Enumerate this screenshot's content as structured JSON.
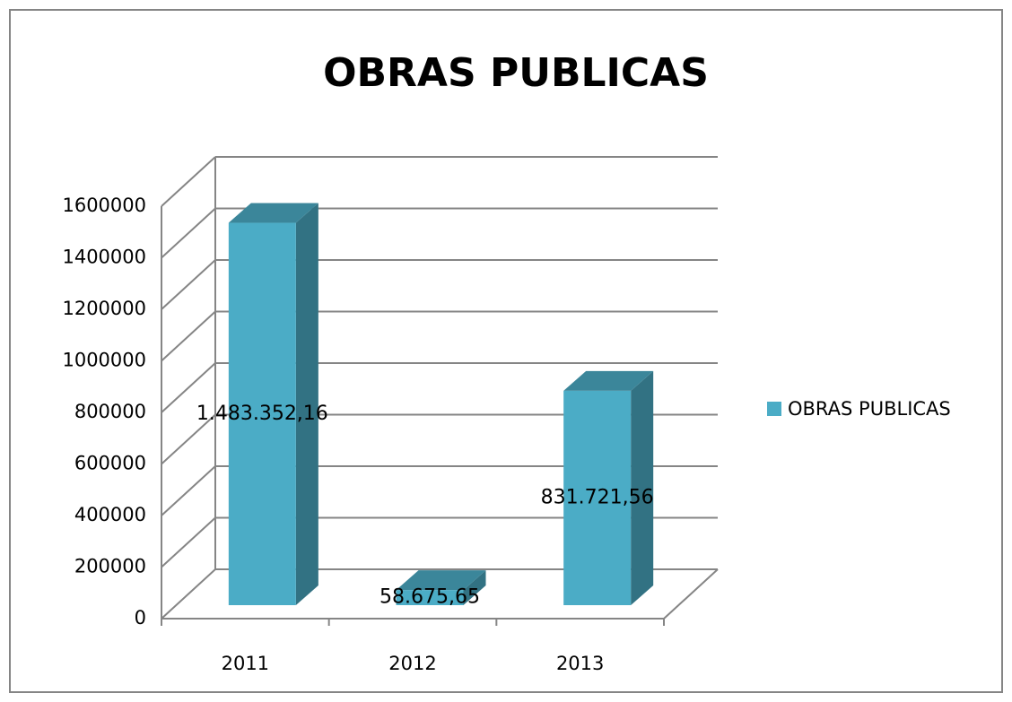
{
  "chart_data": {
    "type": "bar3d",
    "title": "OBRAS PUBLICAS",
    "categories": [
      "2011",
      "2012",
      "2013"
    ],
    "series": [
      {
        "name": "OBRAS PUBLICAS",
        "color": "#4bacc6",
        "values": [
          1483352.16,
          58675.65,
          831721.56
        ],
        "value_labels": [
          "1.483.352,16",
          "58.675,65",
          "831.721,56"
        ]
      }
    ],
    "ylim": [
      0,
      1600000
    ],
    "yticks": [
      0,
      200000,
      400000,
      600000,
      800000,
      1000000,
      1200000,
      1400000,
      1600000
    ],
    "grid": true,
    "legend": "right"
  }
}
